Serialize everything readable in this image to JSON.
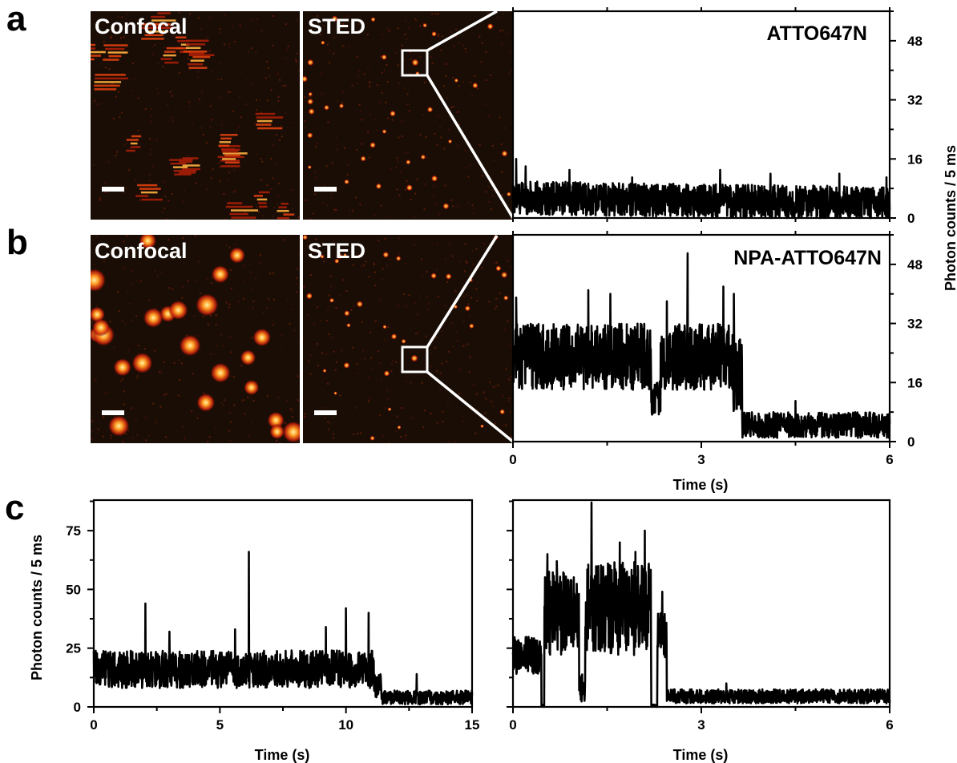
{
  "figure": {
    "panels": [
      {
        "letter": "a",
        "image_labels": [
          "Confocal",
          "STED"
        ],
        "trace_title": "ATTO647N"
      },
      {
        "letter": "b",
        "image_labels": [
          "Confocal",
          "STED"
        ],
        "trace_title": "NPA-ATTO647N"
      },
      {
        "letter": "c"
      }
    ],
    "colors": {
      "image_bg": "#1a0d05",
      "spot_core": "#fff2a0",
      "spot_mid": "#ff8a1a",
      "spot_edge": "#c81a0a",
      "trace": "#000000",
      "scalebar": "#ffffff"
    },
    "icons": [
      "scale-bar",
      "zoom-box"
    ]
  },
  "chart_data": [
    {
      "type": "line",
      "panel": "a",
      "ylabel": "",
      "xlabel": "",
      "xlim": [
        0,
        6
      ],
      "ylim": [
        0,
        56
      ],
      "yticks": [
        0,
        16,
        32,
        48
      ],
      "x_minor_ticks": [
        0,
        1.5,
        3,
        4.5,
        6
      ],
      "axis_side": "right",
      "series": [
        {
          "segments": [
            {
              "t0": 0,
              "t1": 6,
              "mean": 5.5,
              "noise": 4.5,
              "trend": -1.5
            }
          ],
          "spikes": [
            [
              0.05,
              16
            ],
            [
              0.2,
              14
            ],
            [
              0.9,
              13
            ],
            [
              1.9,
              11
            ],
            [
              3.3,
              13
            ],
            [
              4.1,
              12
            ],
            [
              5.2,
              12
            ],
            [
              5.95,
              11
            ]
          ]
        }
      ]
    },
    {
      "type": "line",
      "panel": "b",
      "ylabel": "Photon counts / 5 ms",
      "xlabel": "Time (s)",
      "xlim": [
        0,
        6
      ],
      "ylim": [
        0,
        56
      ],
      "yticks": [
        0,
        16,
        32,
        48
      ],
      "xticks": [
        0,
        3,
        6
      ],
      "x_minor_ticks": [
        1.5,
        4.5
      ],
      "axis_side": "right",
      "series": [
        {
          "segments": [
            {
              "t0": 0,
              "t1": 2.2,
              "mean": 23,
              "noise": 9,
              "trend": 0
            },
            {
              "t0": 2.2,
              "t1": 2.35,
              "mean": 12,
              "noise": 5,
              "trend": 0
            },
            {
              "t0": 2.35,
              "t1": 3.5,
              "mean": 23,
              "noise": 9,
              "trend": 0
            },
            {
              "t0": 3.5,
              "t1": 3.65,
              "mean": 18,
              "noise": 10,
              "trend": 0
            },
            {
              "t0": 3.65,
              "t1": 6,
              "mean": 4.5,
              "noise": 3.5,
              "trend": 0
            }
          ],
          "spikes": [
            [
              0.05,
              39
            ],
            [
              1.2,
              41
            ],
            [
              1.55,
              40
            ],
            [
              2.45,
              38
            ],
            [
              2.78,
              51
            ],
            [
              3.35,
              42
            ],
            [
              3.52,
              40
            ],
            [
              4.5,
              11
            ]
          ]
        }
      ]
    },
    {
      "type": "line",
      "panel": "c-left",
      "ylabel": "Photon counts / 5 ms",
      "xlabel": "Time (s)",
      "xlim": [
        0,
        15
      ],
      "ylim": [
        0,
        88
      ],
      "yticks": [
        0,
        25,
        50,
        75
      ],
      "xticks": [
        0,
        5,
        10,
        15
      ],
      "x_minor_ticks": [
        2.5,
        7.5,
        12.5
      ],
      "axis_side": "left",
      "series": [
        {
          "segments": [
            {
              "t0": 0,
              "t1": 11.1,
              "mean": 16,
              "noise": 8,
              "trend": 0
            },
            {
              "t0": 11.1,
              "t1": 11.4,
              "mean": 9,
              "noise": 5,
              "trend": 0
            },
            {
              "t0": 11.4,
              "t1": 15,
              "mean": 4,
              "noise": 3,
              "trend": 0
            }
          ],
          "spikes": [
            [
              2.05,
              44
            ],
            [
              6.15,
              66
            ],
            [
              10.0,
              42
            ],
            [
              10.9,
              40
            ],
            [
              5.6,
              33
            ],
            [
              3.0,
              32
            ],
            [
              12.8,
              14
            ],
            [
              9.2,
              34
            ]
          ]
        }
      ]
    },
    {
      "type": "line",
      "panel": "c-right",
      "ylabel": "",
      "xlabel": "Time (s)",
      "xlim": [
        0,
        6
      ],
      "ylim": [
        0,
        88
      ],
      "yticks": [
        0,
        25,
        50,
        75
      ],
      "show_ytick_labels": false,
      "xticks": [
        0,
        3,
        6
      ],
      "x_minor_ticks": [
        1.5,
        4.5
      ],
      "axis_side": "left",
      "series": [
        {
          "segments": [
            {
              "t0": 0,
              "t1": 0.45,
              "mean": 22,
              "noise": 8,
              "trend": 0
            },
            {
              "t0": 0.45,
              "t1": 0.5,
              "mean": 0,
              "noise": 1,
              "trend": 0
            },
            {
              "t0": 0.5,
              "t1": 1.05,
              "mean": 40,
              "noise": 18,
              "trend": 0
            },
            {
              "t0": 1.05,
              "t1": 1.15,
              "mean": 8,
              "noise": 6,
              "trend": 0
            },
            {
              "t0": 1.15,
              "t1": 2.2,
              "mean": 42,
              "noise": 20,
              "trend": 0
            },
            {
              "t0": 2.2,
              "t1": 2.3,
              "mean": 0,
              "noise": 1,
              "trend": 0
            },
            {
              "t0": 2.3,
              "t1": 2.45,
              "mean": 30,
              "noise": 10,
              "trend": 0
            },
            {
              "t0": 2.45,
              "t1": 6,
              "mean": 4.5,
              "noise": 3,
              "trend": 0
            }
          ],
          "spikes": [
            [
              0.55,
              65
            ],
            [
              0.7,
              62
            ],
            [
              1.25,
              87
            ],
            [
              1.7,
              70
            ],
            [
              1.95,
              66
            ],
            [
              2.1,
              75
            ],
            [
              2.38,
              49
            ],
            [
              3.4,
              10
            ]
          ]
        }
      ]
    }
  ]
}
